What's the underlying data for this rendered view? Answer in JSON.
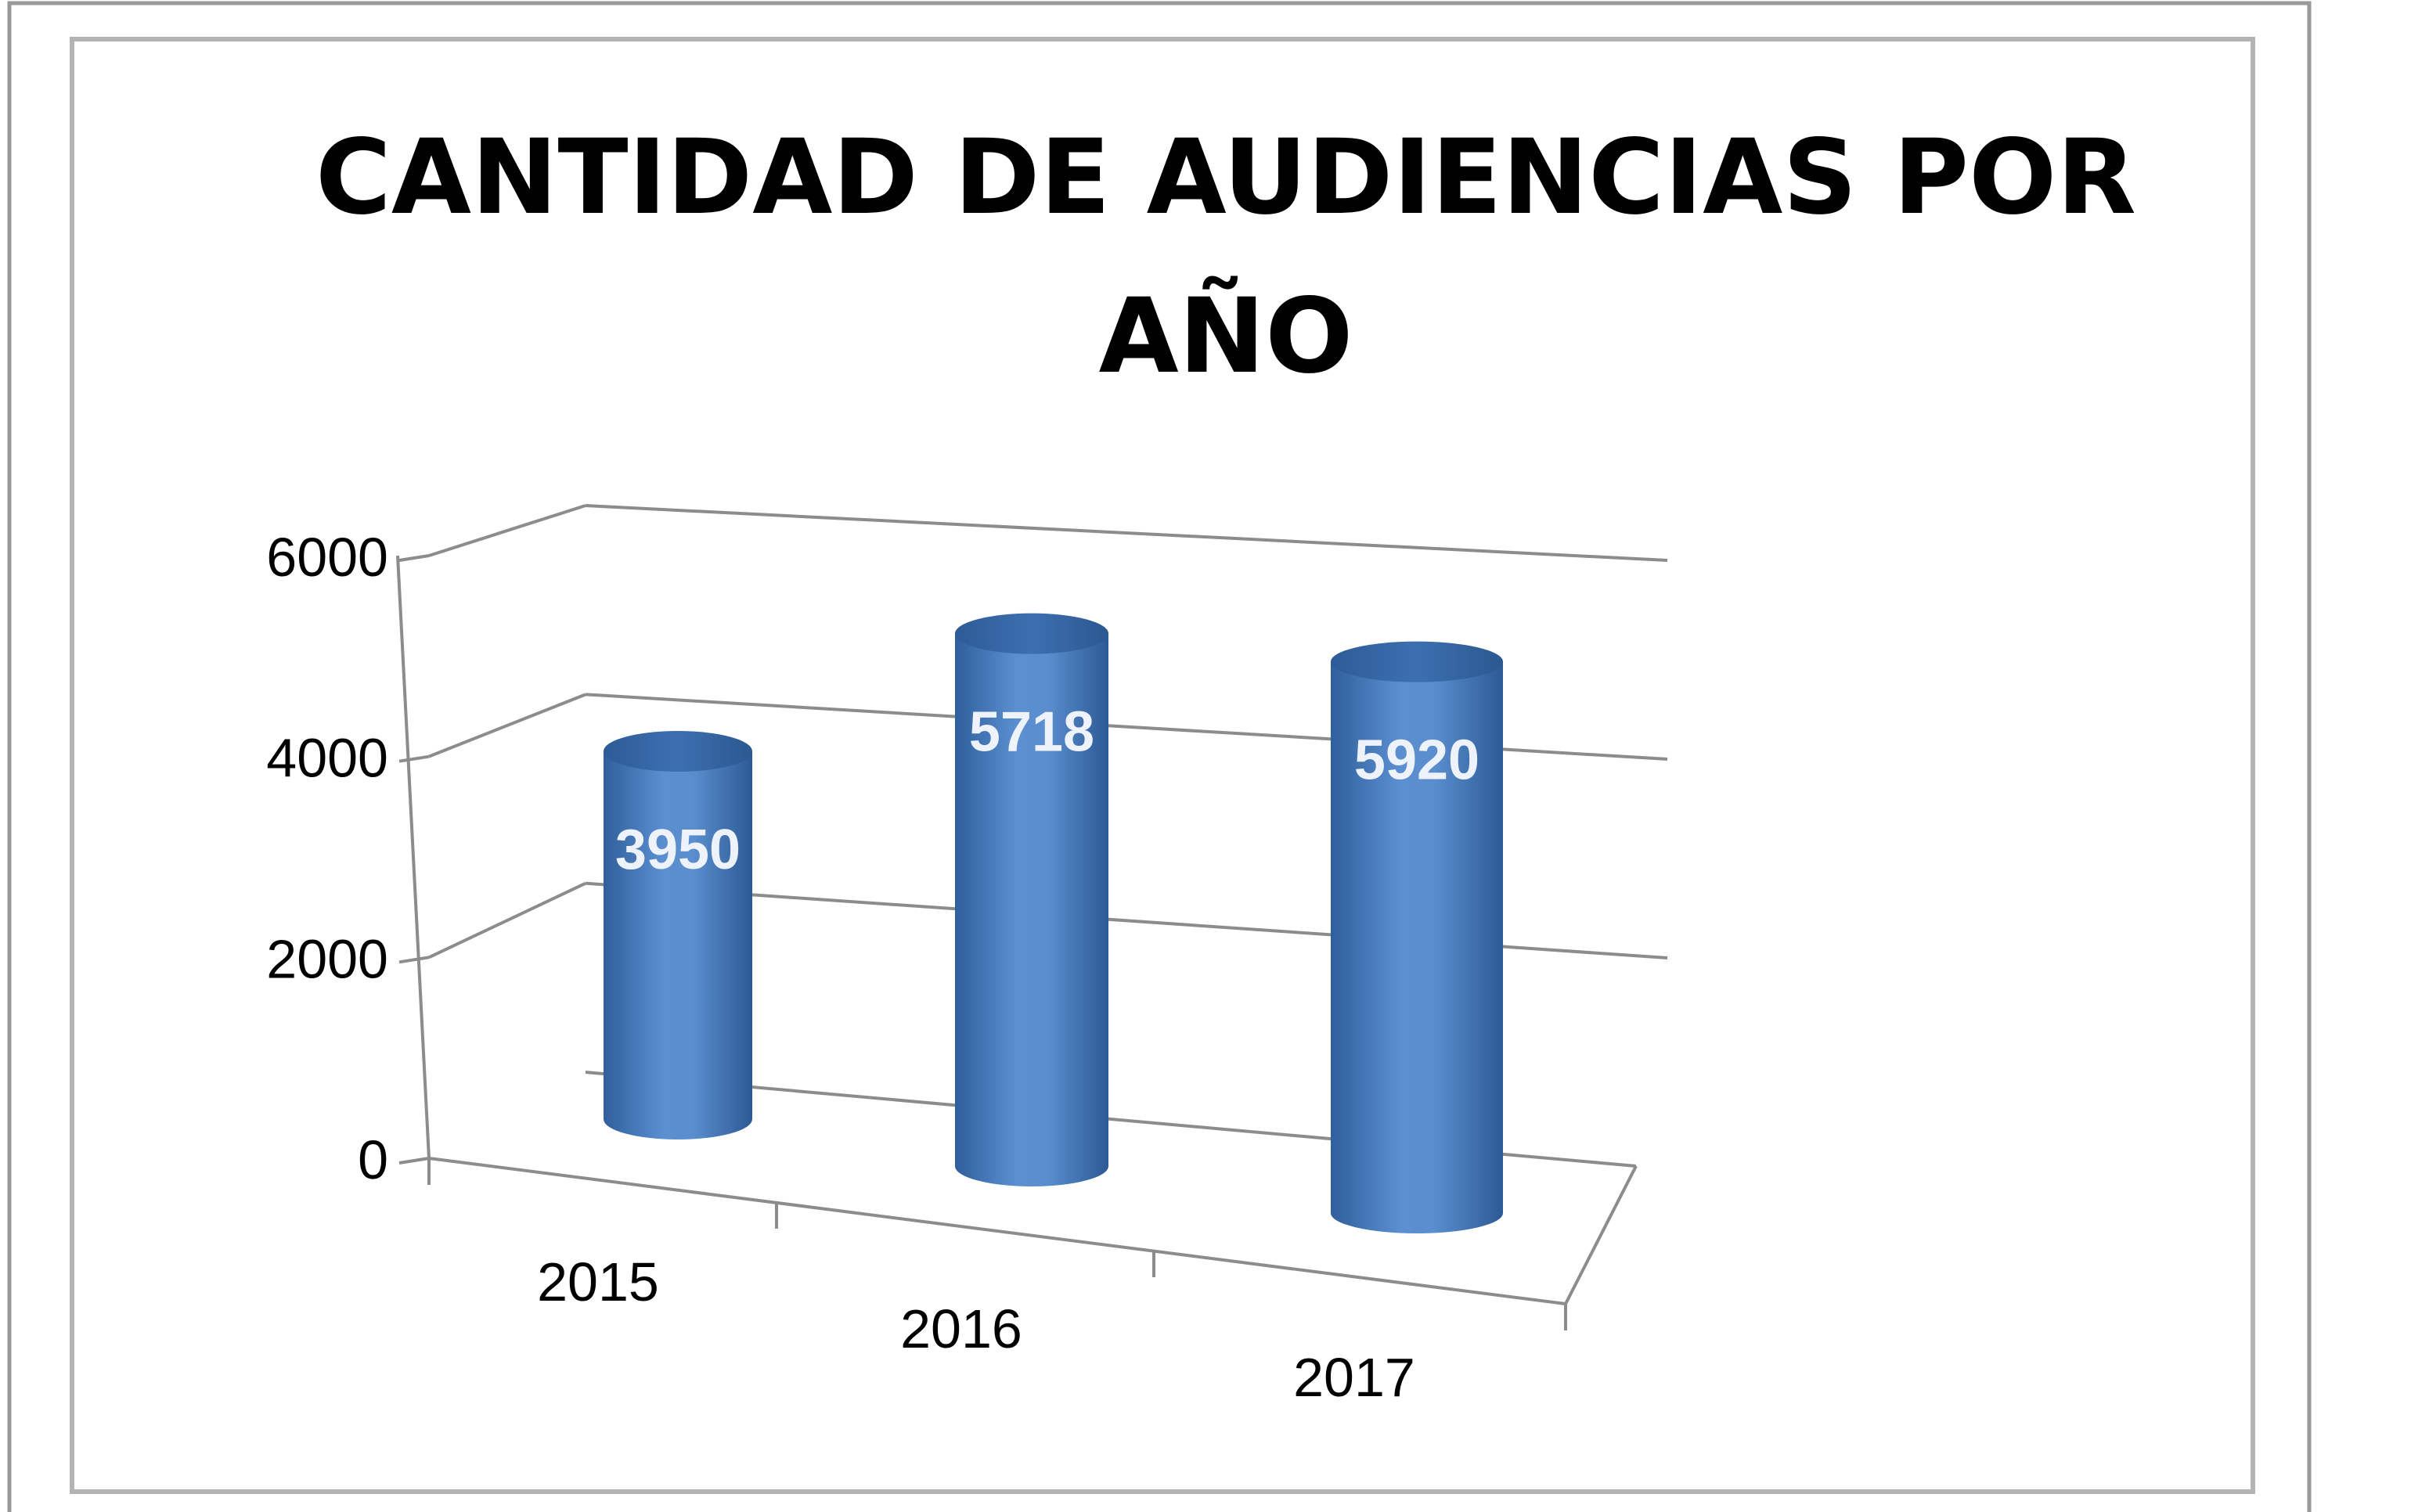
{
  "chart_data": {
    "type": "bar",
    "title_lines": [
      "CANTIDAD DE AUDIENCIAS POR",
      "AÑO"
    ],
    "categories": [
      "2015",
      "2016",
      "2017"
    ],
    "values": [
      3950,
      5718,
      5920
    ],
    "data_labels": [
      "3950",
      "5718",
      "5920"
    ],
    "y_ticks": [
      "0",
      "2000",
      "4000",
      "6000"
    ],
    "ylim": [
      0,
      6000
    ],
    "grid": true,
    "legend": "none",
    "bar_color": "#4f81bd",
    "style": "3d-cylinder"
  }
}
